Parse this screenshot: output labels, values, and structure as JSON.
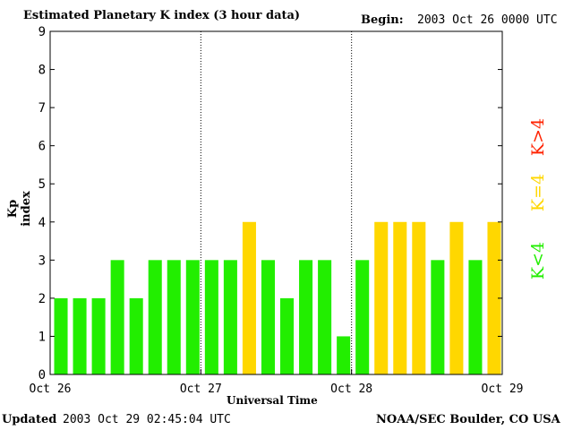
{
  "chart_data": {
    "type": "bar",
    "title": "Estimated Planetary K index (3 hour data)",
    "begin_label": "Begin:",
    "begin_value": "2003 Oct 26 0000 UTC",
    "xlabel": "Universal Time",
    "ylabel": "Kp index",
    "ylim": [
      0,
      9
    ],
    "y_ticks": [
      "0",
      "1",
      "2",
      "3",
      "4",
      "5",
      "6",
      "7",
      "8",
      "9"
    ],
    "x_ticks": [
      "Oct 26",
      "Oct 27",
      "Oct 28",
      "Oct 29"
    ],
    "values": [
      2,
      2,
      2,
      3,
      2,
      3,
      3,
      3,
      3,
      3,
      4,
      3,
      2,
      3,
      3,
      1,
      3,
      4,
      4,
      4,
      3,
      4,
      3,
      4
    ],
    "colors": {
      "below": "#22ee00",
      "equal": "#ffd700",
      "above": "#ff2200"
    },
    "legend": [
      {
        "label": "K>4",
        "color": "#ff2200"
      },
      {
        "label": "K=4",
        "color": "#ffd700"
      },
      {
        "label": "K<4",
        "color": "#22ee00"
      }
    ]
  },
  "footer": {
    "updated_label": "Updated",
    "updated_value": "2003 Oct 29 02:45:04 UTC",
    "source": "NOAA/SEC Boulder, CO USA"
  }
}
